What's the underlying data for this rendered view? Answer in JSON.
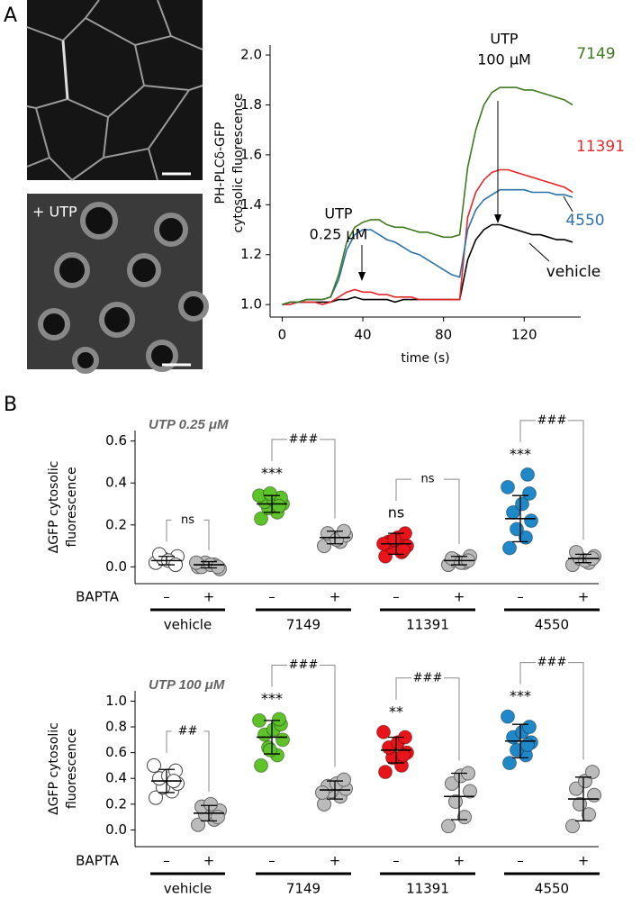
{
  "panel_labels": [
    "A",
    "B"
  ],
  "images": {
    "label": "+ UTP"
  },
  "chart_data": [
    {
      "type": "line",
      "ylabel": [
        "PH-PLCδ-GFP",
        "cytosolic fluorescence"
      ],
      "xlabel": "time (s)",
      "x": [
        0,
        4,
        8,
        12,
        16,
        20,
        24,
        28,
        32,
        36,
        40,
        44,
        48,
        52,
        56,
        60,
        64,
        68,
        72,
        76,
        80,
        84,
        88,
        92,
        96,
        100,
        104,
        108,
        112,
        116,
        120,
        124,
        128,
        132,
        136,
        140,
        144
      ],
      "xlim": [
        -6,
        148
      ],
      "xticks": [
        0,
        40,
        80,
        120
      ],
      "ylim": [
        0.95,
        2.04
      ],
      "yticks": [
        {
          "value": 1,
          "label": "1.0"
        },
        1.2,
        1.4,
        1.6,
        1.8,
        {
          "value": 2,
          "label": "2.0"
        }
      ],
      "annotations": [
        {
          "lines": [
            "UTP",
            "0.25 μM"
          ]
        },
        {
          "lines": [
            "UTP",
            "100 μM"
          ]
        }
      ],
      "series": [
        {
          "name": "7149",
          "color": "#3f7a1e",
          "values": [
            1.0,
            1.01,
            1.01,
            1.02,
            1.02,
            1.02,
            1.03,
            1.12,
            1.25,
            1.31,
            1.33,
            1.34,
            1.34,
            1.32,
            1.31,
            1.31,
            1.3,
            1.29,
            1.29,
            1.28,
            1.27,
            1.27,
            1.28,
            1.55,
            1.7,
            1.8,
            1.85,
            1.87,
            1.87,
            1.87,
            1.86,
            1.86,
            1.85,
            1.84,
            1.83,
            1.82,
            1.8
          ]
        },
        {
          "name": "11391",
          "color": "#e8262a",
          "values": [
            1.0,
            1.0,
            1.01,
            1.01,
            1.01,
            1.0,
            1.01,
            1.03,
            1.05,
            1.06,
            1.05,
            1.05,
            1.04,
            1.04,
            1.03,
            1.03,
            1.03,
            1.02,
            1.02,
            1.02,
            1.02,
            1.02,
            1.02,
            1.35,
            1.45,
            1.5,
            1.53,
            1.54,
            1.54,
            1.53,
            1.52,
            1.51,
            1.5,
            1.49,
            1.48,
            1.47,
            1.45
          ]
        },
        {
          "name": "4550",
          "color": "#2a72a8",
          "values": [
            1.0,
            1.01,
            1.01,
            1.02,
            1.02,
            1.02,
            1.03,
            1.1,
            1.22,
            1.28,
            1.3,
            1.3,
            1.28,
            1.26,
            1.25,
            1.23,
            1.21,
            1.2,
            1.18,
            1.16,
            1.14,
            1.12,
            1.11,
            1.3,
            1.38,
            1.42,
            1.44,
            1.46,
            1.46,
            1.46,
            1.46,
            1.45,
            1.45,
            1.45,
            1.44,
            1.44,
            1.43
          ]
        },
        {
          "name": "vehicle",
          "color": "#000000",
          "values": [
            1.0,
            1.01,
            1.01,
            1.01,
            1.01,
            1.01,
            1.01,
            1.02,
            1.02,
            1.03,
            1.02,
            1.02,
            1.02,
            1.02,
            1.01,
            1.02,
            1.02,
            1.02,
            1.02,
            1.02,
            1.02,
            1.02,
            1.02,
            1.18,
            1.26,
            1.3,
            1.32,
            1.32,
            1.31,
            1.3,
            1.29,
            1.28,
            1.28,
            1.27,
            1.26,
            1.26,
            1.25
          ]
        }
      ]
    },
    {
      "type": "dotplot",
      "title": "UTP 0.25 μM",
      "ylabel": [
        "ΔGFP cytosolic",
        "fluorescence"
      ],
      "row_label": "BAPTA",
      "ylim": [
        -0.08,
        0.65
      ],
      "yticks": [
        {
          "value": 0,
          "label": "0.0"
        },
        0.2,
        0.4,
        0.6
      ],
      "pairs": [
        {
          "name": "vehicle",
          "comparison": "ns"
        },
        {
          "name": "7149",
          "comparison": "###"
        },
        {
          "name": "11391",
          "comparison": "ns"
        },
        {
          "name": "4550",
          "comparison": "###"
        }
      ],
      "groups": [
        {
          "category": "–",
          "color": "#ffffff",
          "mean": 0.03,
          "sd": 0.02,
          "values": [
            0.02,
            0.03,
            0.04,
            0.05,
            0.06,
            0.03,
            0.01
          ]
        },
        {
          "category": "+",
          "color": "#bbbbbb",
          "mean": 0.01,
          "sd": 0.015,
          "values": [
            0.0,
            0.01,
            0.02,
            -0.01,
            0.0,
            0.01,
            0.0,
            0.02
          ]
        },
        {
          "category": "–",
          "color": "#5ec229",
          "mean": 0.3,
          "sd": 0.04,
          "significance": "***",
          "values": [
            0.23,
            0.26,
            0.28,
            0.3,
            0.31,
            0.32,
            0.33,
            0.34,
            0.29,
            0.35
          ]
        },
        {
          "category": "+",
          "color": "#bbbbbb",
          "mean": 0.14,
          "sd": 0.03,
          "values": [
            0.1,
            0.12,
            0.14,
            0.15,
            0.16,
            0.13,
            0.17
          ]
        },
        {
          "category": "–",
          "color": "#e8141a",
          "mean": 0.11,
          "sd": 0.05,
          "significance": "ns",
          "values": [
            0.05,
            0.07,
            0.09,
            0.1,
            0.12,
            0.14,
            0.16,
            0.11,
            0.08,
            0.13
          ]
        },
        {
          "category": "+",
          "color": "#bbbbbb",
          "mean": 0.03,
          "sd": 0.02,
          "values": [
            0.01,
            0.02,
            0.03,
            0.05,
            0.04,
            0.02,
            0.03
          ]
        },
        {
          "category": "–",
          "color": "#1e88c8",
          "mean": 0.23,
          "sd": 0.11,
          "significance": "***",
          "values": [
            0.09,
            0.14,
            0.18,
            0.22,
            0.26,
            0.3,
            0.35,
            0.38,
            0.44
          ]
        },
        {
          "category": "+",
          "color": "#bbbbbb",
          "mean": 0.04,
          "sd": 0.02,
          "values": [
            0.01,
            0.02,
            0.04,
            0.05,
            0.07,
            0.03,
            0.04
          ]
        }
      ]
    },
    {
      "type": "dotplot",
      "title": "UTP 100 μM",
      "ylabel": [
        "ΔGFP cytosolic",
        "fluorescence"
      ],
      "row_label": "BAPTA",
      "ylim": [
        -0.13,
        1.08
      ],
      "yticks": [
        {
          "value": 0,
          "label": "0.0"
        },
        0.2,
        0.4,
        0.6,
        0.8,
        {
          "value": 1,
          "label": "1.0"
        }
      ],
      "pairs": [
        {
          "name": "vehicle",
          "comparison": "##"
        },
        {
          "name": "7149",
          "comparison": "###"
        },
        {
          "name": "11391",
          "comparison": "###"
        },
        {
          "name": "4550",
          "comparison": "###"
        }
      ],
      "groups": [
        {
          "category": "–",
          "color": "#ffffff",
          "mean": 0.38,
          "sd": 0.09,
          "values": [
            0.25,
            0.3,
            0.33,
            0.36,
            0.4,
            0.42,
            0.46,
            0.5,
            0.38
          ]
        },
        {
          "category": "+",
          "color": "#bbbbbb",
          "mean": 0.13,
          "sd": 0.06,
          "values": [
            0.04,
            0.08,
            0.12,
            0.15,
            0.18,
            0.2,
            0.1
          ]
        },
        {
          "category": "–",
          "color": "#5ec229",
          "mean": 0.72,
          "sd": 0.13,
          "significance": "***",
          "values": [
            0.5,
            0.58,
            0.64,
            0.7,
            0.74,
            0.78,
            0.82,
            0.85,
            0.86,
            0.62
          ]
        },
        {
          "category": "+",
          "color": "#bbbbbb",
          "mean": 0.31,
          "sd": 0.07,
          "values": [
            0.2,
            0.26,
            0.3,
            0.32,
            0.34,
            0.36,
            0.39,
            0.29
          ]
        },
        {
          "category": "–",
          "color": "#e8141a",
          "mean": 0.62,
          "sd": 0.1,
          "significance": "**",
          "values": [
            0.45,
            0.5,
            0.56,
            0.6,
            0.64,
            0.68,
            0.72,
            0.76,
            0.58
          ]
        },
        {
          "category": "+",
          "color": "#bbbbbb",
          "mean": 0.26,
          "sd": 0.18,
          "values": [
            0.03,
            0.1,
            0.22,
            0.3,
            0.36,
            0.42,
            0.44
          ]
        },
        {
          "category": "–",
          "color": "#1e88c8",
          "mean": 0.69,
          "sd": 0.13,
          "significance": "***",
          "values": [
            0.52,
            0.58,
            0.62,
            0.68,
            0.72,
            0.76,
            0.8,
            0.88,
            0.66
          ]
        },
        {
          "category": "+",
          "color": "#bbbbbb",
          "mean": 0.24,
          "sd": 0.17,
          "values": [
            0.03,
            0.12,
            0.2,
            0.27,
            0.32,
            0.38,
            0.45
          ]
        }
      ]
    }
  ]
}
